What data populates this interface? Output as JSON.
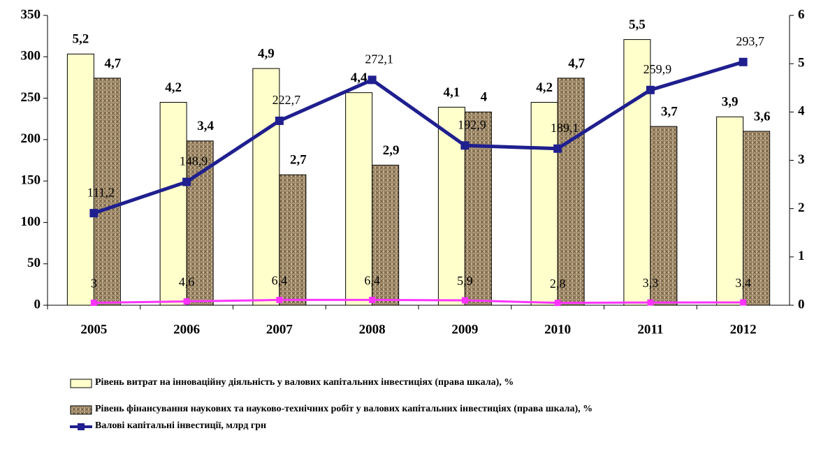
{
  "chart_data": {
    "type": "bar",
    "categories": [
      "2005",
      "2006",
      "2007",
      "2008",
      "2009",
      "2010",
      "2011",
      "2012"
    ],
    "ylim": [
      0,
      350
    ],
    "yticks": [
      0,
      50,
      100,
      150,
      200,
      250,
      300,
      350
    ],
    "y2lim": [
      0,
      6
    ],
    "y2ticks": [
      0,
      1,
      2,
      3,
      4,
      5,
      6
    ],
    "series": [
      {
        "name": "Рівень витрат на інноваційну діяльність у валових капітальних інвестиціях (права шкала), %",
        "type": "bar",
        "axis": "y2",
        "color": "#ffffcc",
        "values": [
          5.2,
          4.2,
          4.9,
          4.4,
          4.1,
          4.2,
          5.5,
          3.9
        ],
        "value_labels": [
          "5,2",
          "4,2",
          "4,9",
          "4,4",
          "4,1",
          "4,2",
          "5,5",
          "3,9"
        ]
      },
      {
        "name": "Рівень фінансування наукових та науково-технічних робіт у валових капітальних інвестиціях (права шкала), %",
        "type": "bar",
        "axis": "y2",
        "color": "#b09a78",
        "values": [
          4.7,
          3.4,
          2.7,
          2.9,
          4,
          4.7,
          3.7,
          3.6
        ],
        "value_labels": [
          "4,7",
          "3,4",
          "2,7",
          "2,9",
          "4",
          "4,7",
          "3,7",
          "3,6"
        ]
      },
      {
        "name": "Валові капітальні інвестиції, млрд грн",
        "type": "line",
        "color": "#1f1f8f",
        "values": [
          111.2,
          148.9,
          222.7,
          272.1,
          192.9,
          189.1,
          259.9,
          293.7
        ],
        "value_labels": [
          "111,2",
          "148,9",
          "222,7",
          "272,1",
          "192,9",
          "189,1",
          "259,9",
          "293,7"
        ]
      },
      {
        "type": "line",
        "color": "#ff33ff",
        "values": [
          3,
          4.6,
          6.4,
          6.4,
          5.9,
          2.8,
          3.3,
          3.4
        ],
        "value_labels": [
          "3",
          "4,6",
          "6,4",
          "6,4",
          "5,9",
          "2,8",
          "3,3",
          "3,4"
        ]
      }
    ]
  }
}
